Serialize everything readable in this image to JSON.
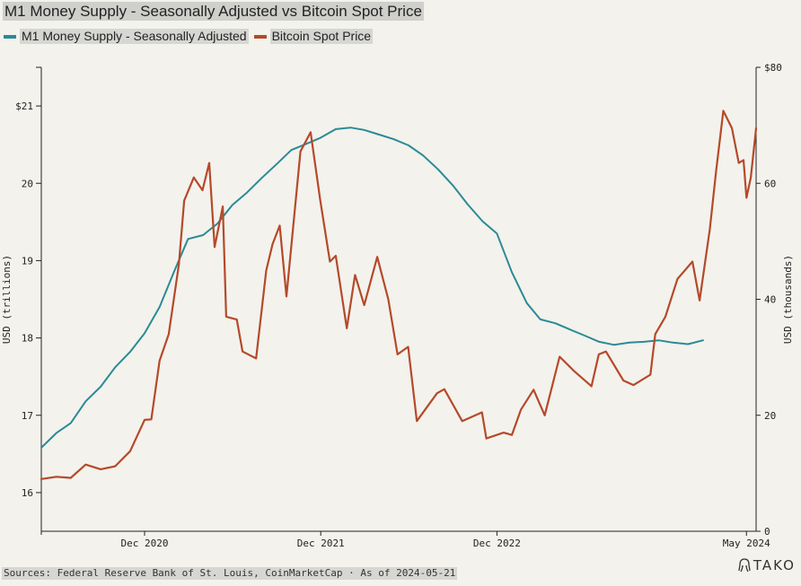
{
  "title": "M1 Money Supply - Seasonally Adjusted vs Bitcoin Spot Price",
  "source": "Sources: Federal Reserve Bank of St. Louis, CoinMarketCap · As of 2024-05-21",
  "brand": "TAKO",
  "colors": {
    "m1": "#2b8a96",
    "btc": "#b5492b",
    "background": "#f3f2ec",
    "axis": "#222222"
  },
  "chart_data": {
    "type": "line",
    "x_axis": {
      "range": [
        "2020-05-01",
        "2024-05-21"
      ],
      "ticks": [
        {
          "date": "2020-12-01",
          "label": "Dec 2020"
        },
        {
          "date": "2021-12-01",
          "label": "Dec 2021"
        },
        {
          "date": "2022-12-01",
          "label": "Dec 2022"
        },
        {
          "date": "2024-05-01",
          "label": "May 2024"
        }
      ]
    },
    "y_left": {
      "label": "USD (trillions)",
      "range": [
        15.5,
        21.5
      ],
      "ticks": [
        {
          "value": 16,
          "label": "16"
        },
        {
          "value": 17,
          "label": "17"
        },
        {
          "value": 18,
          "label": "18"
        },
        {
          "value": 19,
          "label": "19"
        },
        {
          "value": 20,
          "label": "20"
        },
        {
          "value": 21,
          "label": "$21"
        }
      ]
    },
    "y_right": {
      "label": "USD (thousands)",
      "range": [
        0,
        80
      ],
      "ticks": [
        {
          "value": 0,
          "label": "0"
        },
        {
          "value": 20,
          "label": "20"
        },
        {
          "value": 40,
          "label": "40"
        },
        {
          "value": 60,
          "label": "60"
        },
        {
          "value": 80,
          "label": "$80"
        }
      ]
    },
    "series": [
      {
        "name": "M1 Money Supply - Seasonally Adjusted",
        "axis": "left",
        "color": "#2b8a96",
        "points": [
          [
            "2020-05-01",
            16.58
          ],
          [
            "2020-06-01",
            16.77
          ],
          [
            "2020-07-01",
            16.9
          ],
          [
            "2020-08-01",
            17.18
          ],
          [
            "2020-09-01",
            17.37
          ],
          [
            "2020-10-01",
            17.62
          ],
          [
            "2020-11-01",
            17.82
          ],
          [
            "2020-12-01",
            18.06
          ],
          [
            "2021-01-01",
            18.4
          ],
          [
            "2021-02-01",
            18.87
          ],
          [
            "2021-03-01",
            19.28
          ],
          [
            "2021-04-01",
            19.33
          ],
          [
            "2021-05-01",
            19.48
          ],
          [
            "2021-06-01",
            19.72
          ],
          [
            "2021-07-01",
            19.88
          ],
          [
            "2021-08-01",
            20.07
          ],
          [
            "2021-09-01",
            20.25
          ],
          [
            "2021-10-01",
            20.43
          ],
          [
            "2021-11-01",
            20.51
          ],
          [
            "2021-12-01",
            20.59
          ],
          [
            "2022-01-01",
            20.7
          ],
          [
            "2022-02-01",
            20.72
          ],
          [
            "2022-03-01",
            20.69
          ],
          [
            "2022-04-01",
            20.63
          ],
          [
            "2022-05-01",
            20.57
          ],
          [
            "2022-06-01",
            20.49
          ],
          [
            "2022-07-01",
            20.36
          ],
          [
            "2022-08-01",
            20.18
          ],
          [
            "2022-09-01",
            19.97
          ],
          [
            "2022-10-01",
            19.73
          ],
          [
            "2022-11-01",
            19.51
          ],
          [
            "2022-12-01",
            19.35
          ],
          [
            "2023-01-01",
            18.85
          ],
          [
            "2023-02-01",
            18.45
          ],
          [
            "2023-03-01",
            18.24
          ],
          [
            "2023-04-01",
            18.19
          ],
          [
            "2023-05-01",
            18.11
          ],
          [
            "2023-06-01",
            18.03
          ],
          [
            "2023-07-01",
            17.95
          ],
          [
            "2023-08-01",
            17.91
          ],
          [
            "2023-09-01",
            17.94
          ],
          [
            "2023-10-01",
            17.95
          ],
          [
            "2023-11-01",
            17.97
          ],
          [
            "2023-12-01",
            17.94
          ],
          [
            "2024-01-01",
            17.92
          ],
          [
            "2024-02-01",
            17.97
          ]
        ]
      },
      {
        "name": "Bitcoin Spot Price",
        "axis": "right",
        "color": "#b5492b",
        "points": [
          [
            "2020-05-01",
            9.0
          ],
          [
            "2020-06-01",
            9.4
          ],
          [
            "2020-07-01",
            9.2
          ],
          [
            "2020-08-01",
            11.5
          ],
          [
            "2020-09-01",
            10.7
          ],
          [
            "2020-10-01",
            11.2
          ],
          [
            "2020-11-01",
            13.8
          ],
          [
            "2020-12-01",
            19.2
          ],
          [
            "2020-12-15",
            19.3
          ],
          [
            "2021-01-01",
            29.4
          ],
          [
            "2021-01-20",
            34.0
          ],
          [
            "2021-02-10",
            46.0
          ],
          [
            "2021-02-21",
            57.0
          ],
          [
            "2021-03-13",
            61.0
          ],
          [
            "2021-03-31",
            58.8
          ],
          [
            "2021-04-14",
            63.5
          ],
          [
            "2021-04-25",
            49.0
          ],
          [
            "2021-05-12",
            56.0
          ],
          [
            "2021-05-19",
            37.0
          ],
          [
            "2021-06-10",
            36.5
          ],
          [
            "2021-06-22",
            31.0
          ],
          [
            "2021-07-20",
            29.8
          ],
          [
            "2021-08-10",
            45.0
          ],
          [
            "2021-08-23",
            49.5
          ],
          [
            "2021-09-07",
            52.7
          ],
          [
            "2021-09-21",
            40.5
          ],
          [
            "2021-10-20",
            65.5
          ],
          [
            "2021-11-10",
            68.8
          ],
          [
            "2021-11-30",
            57.0
          ],
          [
            "2021-12-20",
            46.5
          ],
          [
            "2022-01-01",
            47.5
          ],
          [
            "2022-01-24",
            35.0
          ],
          [
            "2022-02-10",
            44.2
          ],
          [
            "2022-03-01",
            39.0
          ],
          [
            "2022-03-28",
            47.3
          ],
          [
            "2022-04-20",
            40.0
          ],
          [
            "2022-05-09",
            30.5
          ],
          [
            "2022-05-31",
            31.8
          ],
          [
            "2022-06-18",
            19.0
          ],
          [
            "2022-07-30",
            23.8
          ],
          [
            "2022-08-14",
            24.5
          ],
          [
            "2022-09-20",
            19.0
          ],
          [
            "2022-10-31",
            20.5
          ],
          [
            "2022-11-09",
            16.0
          ],
          [
            "2022-12-15",
            17.0
          ],
          [
            "2023-01-01",
            16.6
          ],
          [
            "2023-01-20",
            21.0
          ],
          [
            "2023-02-15",
            24.4
          ],
          [
            "2023-03-10",
            20.0
          ],
          [
            "2023-04-10",
            30.1
          ],
          [
            "2023-05-10",
            27.6
          ],
          [
            "2023-06-15",
            25.0
          ],
          [
            "2023-06-30",
            30.5
          ],
          [
            "2023-07-15",
            31.0
          ],
          [
            "2023-08-20",
            26.0
          ],
          [
            "2023-09-10",
            25.2
          ],
          [
            "2023-10-15",
            27.0
          ],
          [
            "2023-10-25",
            34.0
          ],
          [
            "2023-11-15",
            37.0
          ],
          [
            "2023-12-10",
            43.5
          ],
          [
            "2024-01-10",
            46.5
          ],
          [
            "2024-01-25",
            39.8
          ],
          [
            "2024-02-15",
            52.0
          ],
          [
            "2024-02-28",
            62.0
          ],
          [
            "2024-03-14",
            72.5
          ],
          [
            "2024-04-01",
            69.5
          ],
          [
            "2024-04-15",
            63.5
          ],
          [
            "2024-04-25",
            64.0
          ],
          [
            "2024-05-01",
            57.5
          ],
          [
            "2024-05-10",
            61.0
          ],
          [
            "2024-05-21",
            69.5
          ]
        ]
      }
    ]
  }
}
